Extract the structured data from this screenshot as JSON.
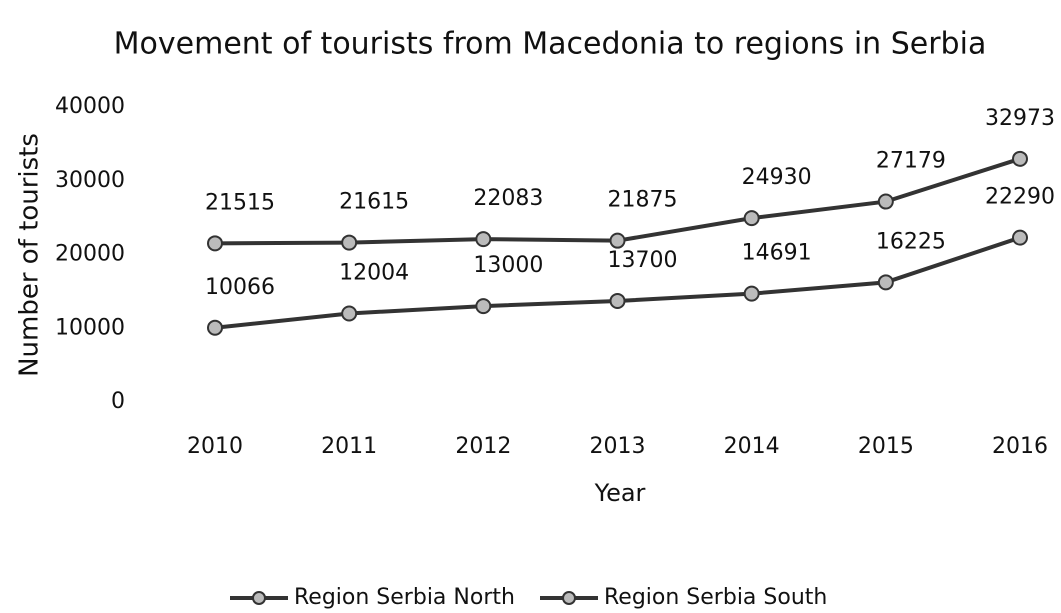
{
  "chart_data": {
    "type": "line",
    "title": "Movement of tourists from Macedonia to regions in Serbia",
    "x_label": "Year",
    "y_label": "Number of tourists",
    "categories": [
      "2010",
      "2011",
      "2012",
      "2013",
      "2014",
      "2015",
      "2016"
    ],
    "series": [
      {
        "name": "Region Serbia North",
        "color": "#333333",
        "values": [
          21515,
          21615,
          22083,
          21875,
          24930,
          27179,
          32973
        ]
      },
      {
        "name": "Region Serbia South",
        "color": "#333333",
        "values": [
          10066,
          12004,
          13000,
          13700,
          14691,
          16225,
          22290
        ]
      }
    ],
    "ylim": [
      0,
      40000
    ],
    "yticks": [
      0,
      10000,
      20000,
      30000,
      40000
    ],
    "grid": false,
    "legend": "bottom"
  }
}
